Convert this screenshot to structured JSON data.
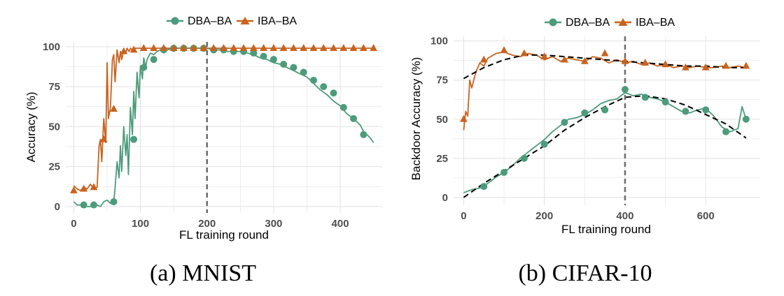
{
  "colors": {
    "dba": "#4c9b7b",
    "iba": "#c8631e",
    "grid": "#e4e4e4",
    "panel": "#ffffff",
    "vline": "#6b6b6b",
    "trend": "#000000"
  },
  "chart_data": [
    {
      "type": "line",
      "caption": "(a) MNIST",
      "xlabel": "FL training round",
      "ylabel": "Accuracy (%)",
      "xlim": [
        -12,
        463
      ],
      "ylim": [
        -4,
        103
      ],
      "xticks": [
        0,
        100,
        200,
        300,
        400
      ],
      "yticks": [
        0,
        25,
        50,
        75,
        100
      ],
      "grid": true,
      "legend": "top-center",
      "vline_x": 200,
      "series": [
        {
          "name": "DBA–BA",
          "marker": "circle",
          "x": [
            0,
            5,
            10,
            15,
            20,
            25,
            30,
            35,
            40,
            45,
            50,
            55,
            58,
            60,
            62,
            65,
            68,
            70,
            72,
            75,
            78,
            80,
            82,
            85,
            88,
            90,
            92,
            95,
            98,
            100,
            103,
            105,
            108,
            110,
            115,
            120,
            125,
            130,
            140,
            150,
            160,
            170,
            180,
            190,
            200,
            210,
            220,
            230,
            240,
            250,
            260,
            270,
            280,
            290,
            300,
            310,
            320,
            330,
            340,
            350,
            360,
            370,
            380,
            390,
            400,
            410,
            420,
            430,
            435,
            440,
            445,
            450
          ],
          "y": [
            3,
            1,
            1,
            1,
            0,
            0,
            1,
            1,
            0,
            3,
            4,
            2,
            2,
            3,
            12,
            28,
            18,
            38,
            22,
            50,
            32,
            45,
            20,
            62,
            45,
            72,
            55,
            84,
            68,
            88,
            80,
            93,
            87,
            92,
            96,
            95,
            97,
            98,
            98,
            99,
            99,
            99,
            99,
            99,
            99,
            98,
            98,
            97,
            97,
            97,
            96,
            95,
            93,
            92,
            90,
            89,
            87,
            85,
            83,
            81,
            77,
            73,
            70,
            66,
            63,
            58,
            55,
            51,
            47,
            45,
            43,
            40
          ],
          "markers_x": [
            15,
            30,
            60,
            90,
            105,
            120,
            135,
            150,
            165,
            180,
            195,
            210,
            225,
            240,
            255,
            270,
            285,
            300,
            315,
            330,
            345,
            360,
            375,
            390,
            405,
            420,
            435
          ],
          "markers_y": [
            1,
            1,
            3,
            42,
            87,
            92,
            98,
            99,
            99,
            99,
            99,
            98,
            98,
            97,
            97,
            96,
            94,
            92,
            89,
            87,
            84,
            79,
            75,
            71,
            62,
            55,
            45
          ]
        },
        {
          "name": "IBA–BA",
          "marker": "triangle",
          "x": [
            0,
            5,
            10,
            15,
            20,
            25,
            30,
            35,
            38,
            40,
            42,
            45,
            48,
            50,
            52,
            55,
            58,
            60,
            62,
            65,
            68,
            70,
            72,
            75,
            78,
            80,
            83,
            85,
            88,
            90,
            95,
            100,
            110,
            120,
            130,
            140,
            150,
            160,
            170,
            180,
            190,
            200,
            220,
            250,
            280,
            310,
            340,
            370,
            400,
            430,
            450
          ],
          "y": [
            13,
            11,
            10,
            12,
            11,
            14,
            11,
            12,
            38,
            42,
            28,
            55,
            40,
            90,
            55,
            62,
            92,
            95,
            78,
            98,
            90,
            97,
            92,
            98,
            96,
            99,
            97,
            99,
            98,
            99,
            99,
            99,
            99,
            99,
            99,
            99,
            99,
            99,
            99,
            99,
            99,
            99,
            99,
            99,
            99,
            99,
            99,
            99,
            99,
            99,
            99
          ],
          "markers_x": [
            0,
            15,
            30,
            45,
            60,
            75,
            90,
            105,
            120,
            135,
            150,
            165,
            180,
            195,
            210,
            225,
            240,
            255,
            270,
            285,
            300,
            315,
            330,
            345,
            360,
            375,
            390,
            405,
            420,
            435,
            450
          ],
          "markers_y": [
            10,
            11,
            12,
            42,
            61,
            97,
            98,
            99,
            99,
            99,
            99,
            99,
            99,
            99,
            99,
            99,
            99,
            99,
            99,
            99,
            99,
            99,
            99,
            99,
            99,
            99,
            99,
            99,
            99,
            99,
            99
          ]
        }
      ]
    },
    {
      "type": "line",
      "caption": "(b) CIFAR-10",
      "xlabel": "FL training round",
      "ylabel": "Backdoor Accuracy (%)",
      "xlim": [
        -25,
        735
      ],
      "ylim": [
        -5,
        103
      ],
      "xticks": [
        0,
        200,
        400,
        600
      ],
      "yticks": [
        0,
        25,
        50,
        75,
        100
      ],
      "grid": true,
      "legend": "top-center",
      "vline_x": 400,
      "series": [
        {
          "name": "DBA–BA",
          "marker": "circle",
          "x": [
            0,
            20,
            40,
            60,
            80,
            100,
            120,
            140,
            160,
            180,
            200,
            220,
            240,
            260,
            280,
            300,
            320,
            340,
            360,
            380,
            400,
            420,
            440,
            460,
            480,
            500,
            520,
            540,
            560,
            580,
            600,
            620,
            640,
            660,
            680,
            690,
            700
          ],
          "y": [
            3,
            5,
            6,
            9,
            13,
            16,
            20,
            25,
            29,
            33,
            37,
            42,
            46,
            50,
            51,
            53,
            56,
            60,
            62,
            63,
            67,
            65,
            66,
            64,
            63,
            61,
            58,
            55,
            54,
            56,
            57,
            52,
            45,
            42,
            44,
            58,
            50
          ],
          "markers_x": [
            50,
            100,
            150,
            200,
            250,
            300,
            350,
            400,
            450,
            500,
            550,
            600,
            650,
            700
          ],
          "markers_y": [
            7,
            16,
            25,
            34,
            48,
            54,
            56,
            69,
            64,
            61,
            55,
            56,
            42,
            50
          ]
        },
        {
          "name": "IBA–BA",
          "marker": "triangle",
          "x": [
            0,
            5,
            10,
            15,
            20,
            30,
            40,
            50,
            60,
            80,
            100,
            120,
            140,
            160,
            180,
            200,
            220,
            240,
            260,
            280,
            300,
            320,
            340,
            360,
            380,
            400,
            420,
            440,
            460,
            480,
            500,
            520,
            540,
            560,
            580,
            600,
            620,
            640,
            660,
            680,
            700
          ],
          "y": [
            43,
            55,
            52,
            75,
            70,
            80,
            86,
            84,
            89,
            92,
            93,
            91,
            90,
            92,
            91,
            88,
            90,
            87,
            89,
            88,
            87,
            90,
            89,
            86,
            88,
            86,
            87,
            85,
            86,
            84,
            85,
            83,
            84,
            83,
            84,
            83,
            83,
            84,
            83,
            84,
            83
          ],
          "markers_x": [
            0,
            50,
            100,
            150,
            200,
            250,
            300,
            350,
            400,
            450,
            500,
            550,
            600,
            650,
            700
          ],
          "markers_y": [
            50,
            88,
            94,
            92,
            90,
            88,
            87,
            92,
            87,
            86,
            85,
            83,
            83,
            84,
            84
          ]
        }
      ],
      "trendlines": [
        {
          "for": "DBA–BA",
          "x": [
            0,
            50,
            100,
            150,
            200,
            250,
            300,
            350,
            400,
            450,
            500,
            550,
            600,
            650,
            700
          ],
          "y": [
            0,
            9,
            17,
            25,
            33,
            43,
            51,
            58,
            64,
            65,
            63,
            59,
            53,
            47,
            38
          ]
        },
        {
          "for": "IBA–BA",
          "x": [
            0,
            50,
            100,
            150,
            200,
            250,
            300,
            350,
            400,
            450,
            500,
            550,
            600,
            650,
            700
          ],
          "y": [
            76,
            83,
            88,
            91,
            91,
            90,
            89,
            88,
            87,
            86,
            85,
            84,
            84,
            83,
            83
          ]
        }
      ]
    }
  ]
}
